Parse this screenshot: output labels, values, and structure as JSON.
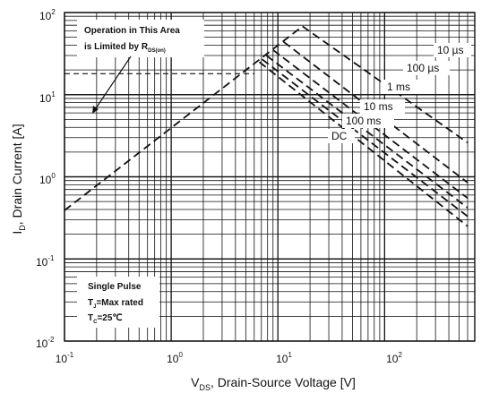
{
  "chart_data": {
    "type": "line",
    "x_scale": "log",
    "y_scale": "log",
    "xlim": [
      0.1,
      700
    ],
    "ylim": [
      0.01,
      100
    ],
    "grid": true,
    "x_ticks": [
      {
        "base": "10",
        "exp": "-1",
        "value": 0.1
      },
      {
        "base": "10",
        "exp": "0",
        "value": 1
      },
      {
        "base": "10",
        "exp": "1",
        "value": 10
      },
      {
        "base": "10",
        "exp": "2",
        "value": 100
      }
    ],
    "y_ticks": [
      {
        "base": "10",
        "exp": "-2",
        "value": 0.01
      },
      {
        "base": "10",
        "exp": "-1",
        "value": 0.1
      },
      {
        "base": "10",
        "exp": "0",
        "value": 1
      },
      {
        "base": "10",
        "exp": "1",
        "value": 10
      },
      {
        "base": "10",
        "exp": "2",
        "value": 100
      }
    ],
    "xlabel": {
      "main": "V",
      "sub": "DS",
      "rest": ", Drain-Source Voltage [V]"
    },
    "ylabel": {
      "main": "I",
      "sub": "D",
      "rest": ", Drain Current [A]"
    },
    "rds_limit": {
      "x": [
        0.1,
        17
      ],
      "y": [
        0.39,
        68
      ]
    },
    "current_limit": {
      "value": 18,
      "x": [
        0.1,
        6
      ]
    },
    "series": [
      {
        "name": "10 µs",
        "x": [
          17,
          600
        ],
        "y": [
          68,
          2.6
        ]
      },
      {
        "name": "100 µs",
        "x": [
          11.3,
          600
        ],
        "y": [
          44,
          0.85
        ]
      },
      {
        "name": "1 ms",
        "x": [
          9,
          600
        ],
        "y": [
          35,
          0.55
        ]
      },
      {
        "name": "10 ms",
        "x": [
          7.8,
          600
        ],
        "y": [
          30,
          0.42
        ]
      },
      {
        "name": "100 ms",
        "x": [
          7.1,
          600
        ],
        "y": [
          27,
          0.33
        ]
      },
      {
        "name": "DC",
        "x": [
          6.7,
          600
        ],
        "y": [
          25,
          0.25
        ]
      }
    ],
    "annotations": {
      "operation_area": {
        "line1": "Operation in This Area",
        "line2": "is Limited by R",
        "line2_sub": "DS(on)"
      },
      "conditions": {
        "line1": "Single Pulse",
        "line2_main": "T",
        "line2_sub": "J",
        "line2_rest": "=Max rated",
        "line3_main": "T",
        "line3_sub": "C",
        "line3_rest": "=25℃"
      }
    }
  }
}
